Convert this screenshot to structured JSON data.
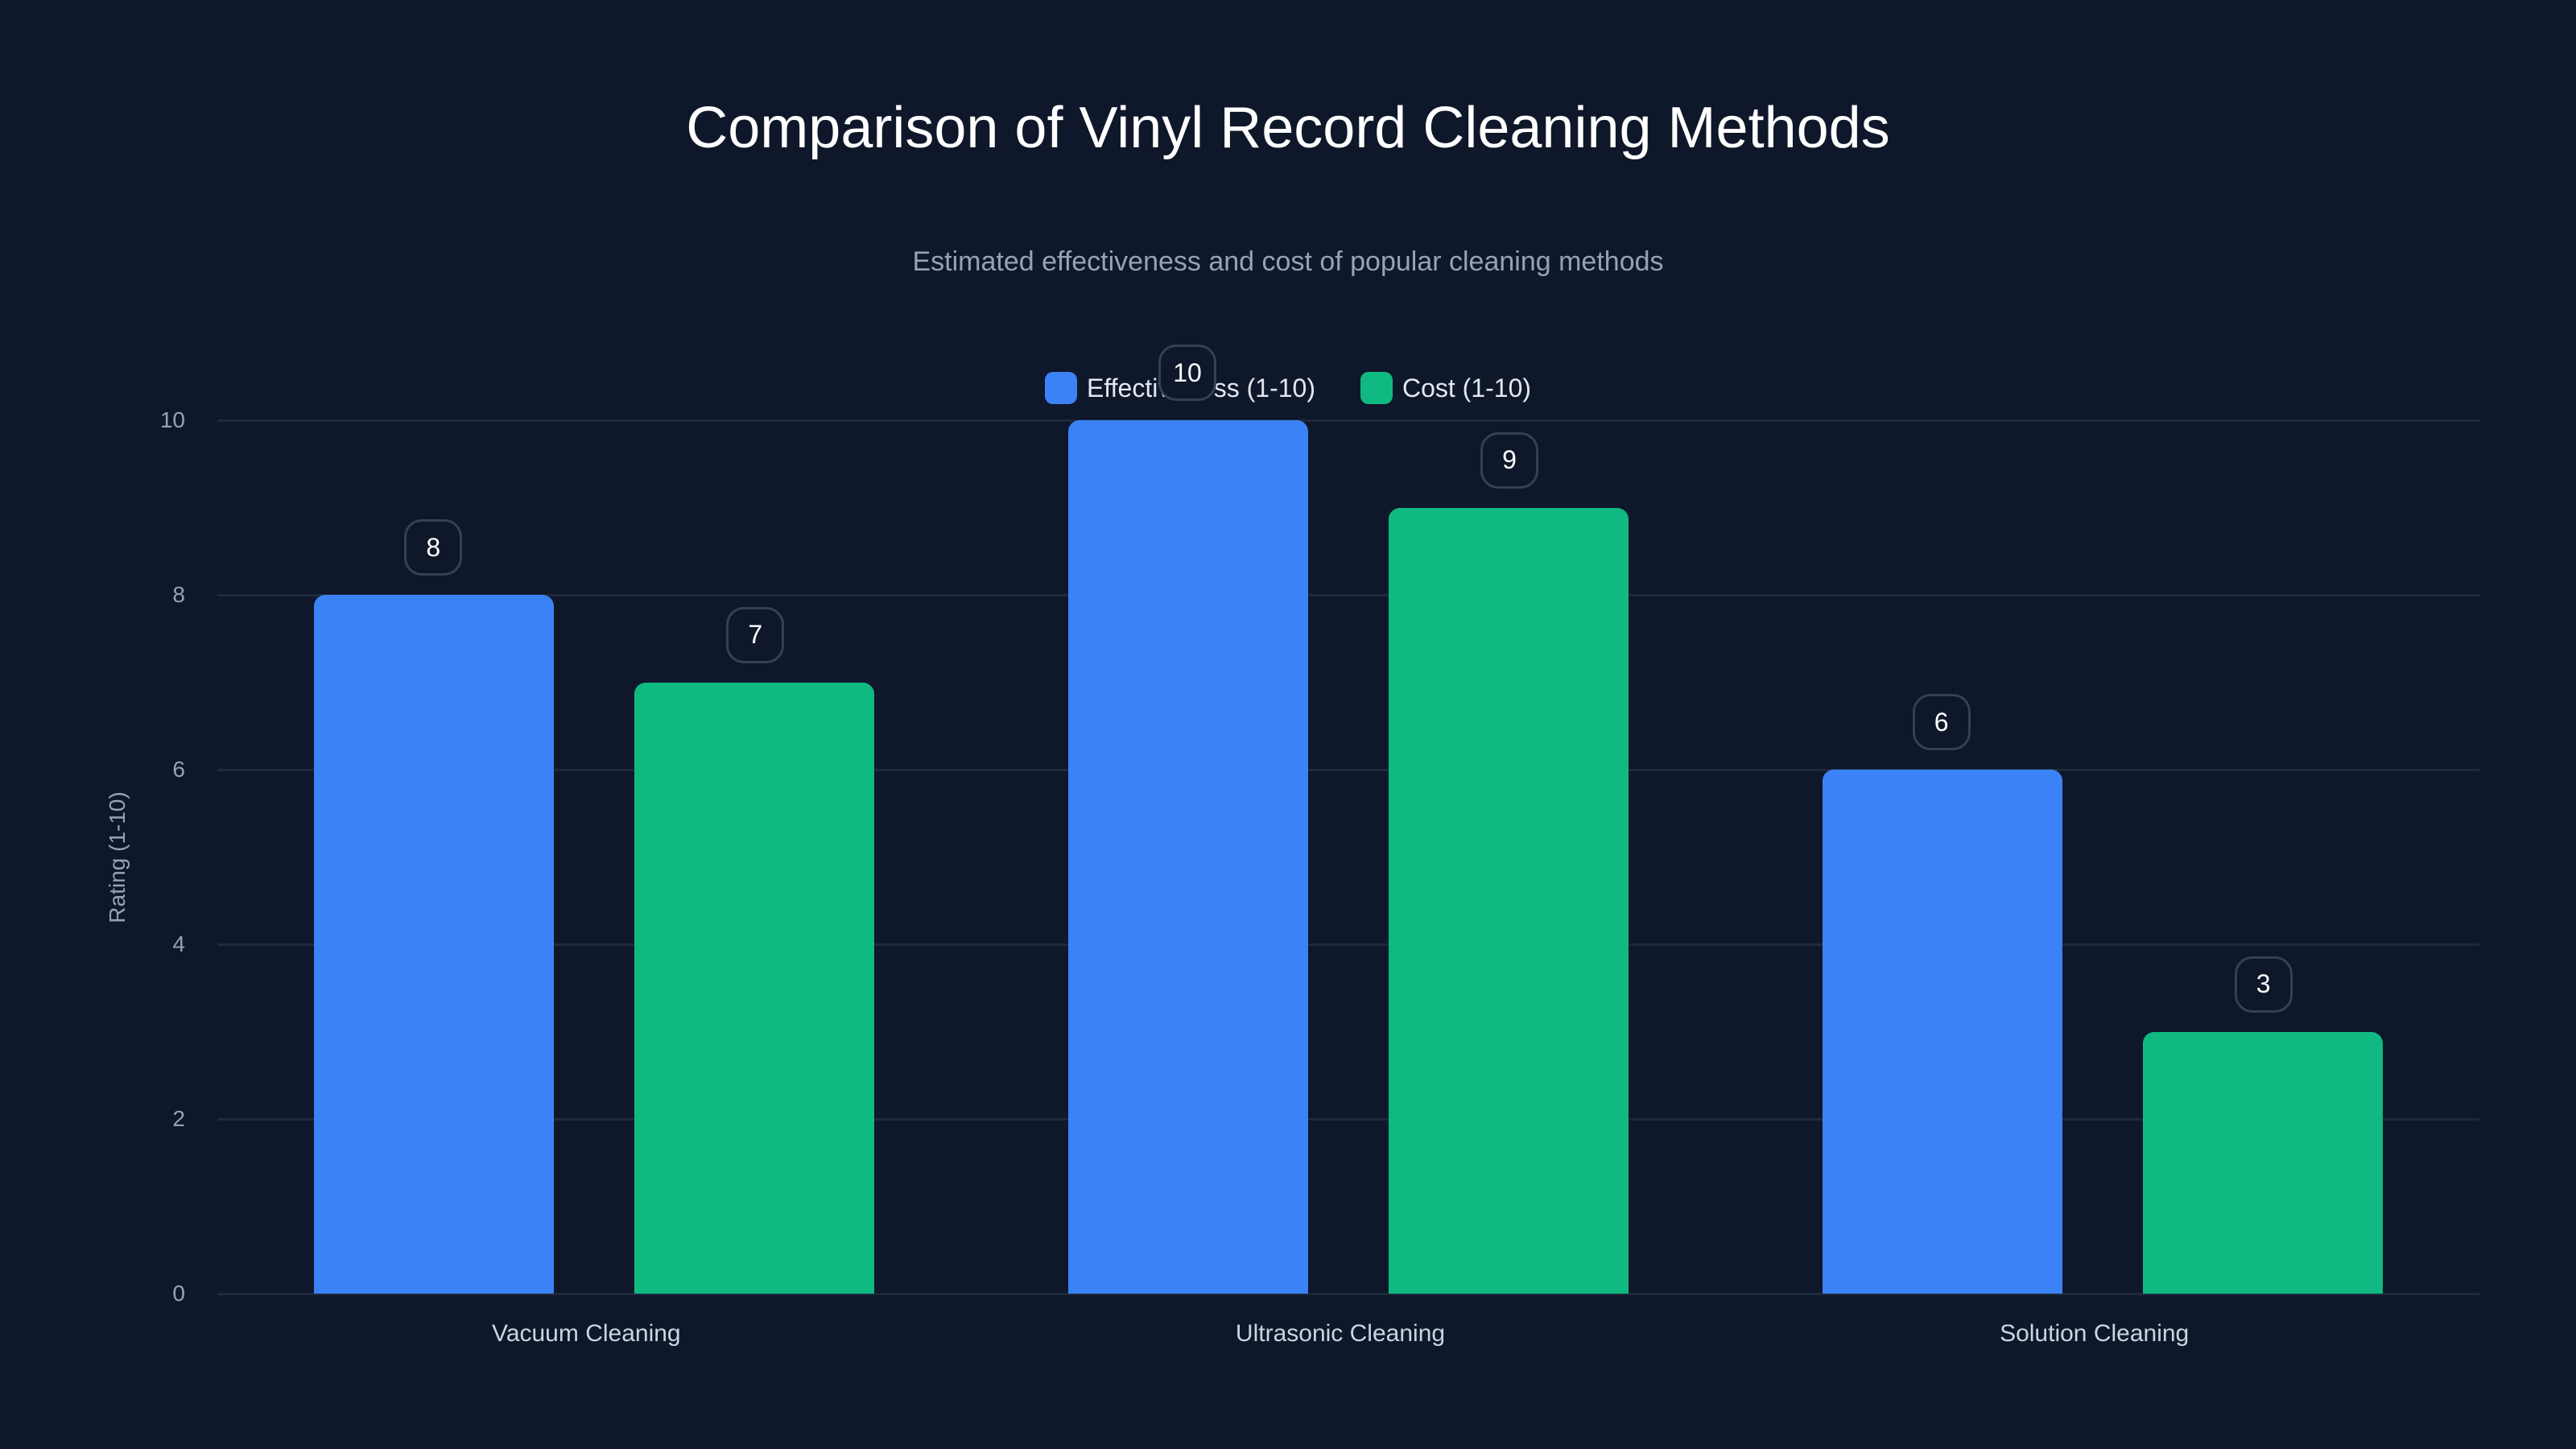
{
  "chart_data": {
    "type": "bar",
    "title": "Comparison of Vinyl Record Cleaning Methods",
    "subtitle": "Estimated effectiveness and cost of popular cleaning methods",
    "categories": [
      "Vacuum Cleaning",
      "Ultrasonic Cleaning",
      "Solution Cleaning"
    ],
    "series": [
      {
        "name": "Effectiveness (1-10)",
        "color": "#3b82f6",
        "values": [
          8,
          10,
          6
        ]
      },
      {
        "name": "Cost (1-10)",
        "color": "#10b981",
        "values": [
          7,
          9,
          3
        ]
      }
    ],
    "xlabel": "",
    "ylabel": "Rating (1-10)",
    "ylim": [
      0,
      10
    ],
    "yticks": [
      0,
      2,
      4,
      6,
      8,
      10
    ],
    "grid": true,
    "legend_position": "top-center",
    "data_labels": true
  },
  "colors": {
    "background": "#0f172a",
    "grid": "#1e293b",
    "effectiveness": "#3b82f6",
    "cost": "#10b981"
  }
}
